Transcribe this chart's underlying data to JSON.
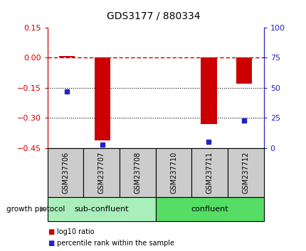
{
  "title": "GDS3177 / 880334",
  "samples": [
    "GSM237706",
    "GSM237707",
    "GSM237708",
    "GSM237710",
    "GSM237711",
    "GSM237712"
  ],
  "log10_ratio": [
    0.01,
    -0.41,
    0.0,
    0.0,
    -0.33,
    -0.13
  ],
  "percentile_rank": [
    47,
    3,
    null,
    null,
    5,
    23
  ],
  "ylim_left": [
    -0.45,
    0.15
  ],
  "ylim_right": [
    0,
    100
  ],
  "yticks_left": [
    0.15,
    0.0,
    -0.15,
    -0.3,
    -0.45
  ],
  "yticks_right": [
    100,
    75,
    50,
    25,
    0
  ],
  "bar_color": "#cc0000",
  "dot_color": "#2222cc",
  "hline_color": "#cc0000",
  "grid_color": "#000000",
  "group_label_sub": "sub-confluent",
  "group_label_con": "confluent",
  "growth_protocol_label": "growth protocol",
  "legend_bar_label": "log10 ratio",
  "legend_dot_label": "percentile rank within the sample",
  "bar_width": 0.45,
  "sub_color": "#aaeebb",
  "con_color": "#55dd66",
  "tick_label_color_left": "#cc0000",
  "tick_label_color_right": "#2222cc",
  "box_color": "#cccccc",
  "figsize": [
    4.31,
    3.54
  ],
  "dpi": 100
}
